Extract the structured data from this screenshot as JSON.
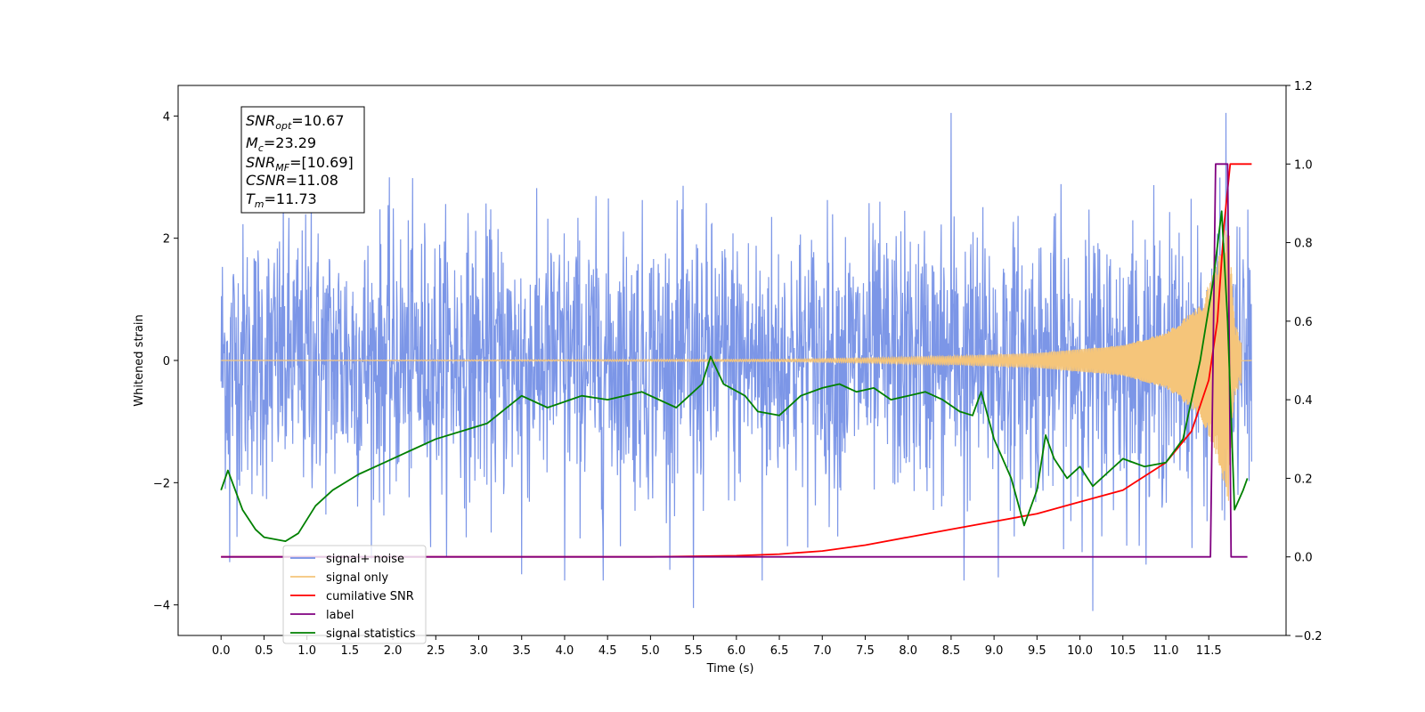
{
  "chart_data": {
    "type": "line",
    "xlabel": "Time (s)",
    "ylabel": "Whitened strain",
    "xlim": [
      -0.5,
      12.4
    ],
    "ylim": [
      -4.5,
      4.5
    ],
    "y2lim": [
      -0.2,
      1.2
    ],
    "xticks": [
      "0.0",
      "0.5",
      "1.0",
      "1.5",
      "2.0",
      "2.5",
      "3.0",
      "3.5",
      "4.0",
      "4.5",
      "5.0",
      "5.5",
      "6.0",
      "6.5",
      "7.0",
      "7.5",
      "8.0",
      "8.5",
      "9.0",
      "9.5",
      "10.0",
      "10.5",
      "11.0",
      "11.5"
    ],
    "yticks": [
      "4",
      "2",
      "0",
      "−2",
      "−4"
    ],
    "y2ticks": [
      "1.2",
      "1.0",
      "0.8",
      "0.6",
      "0.4",
      "0.2",
      "0.0",
      "−0.2"
    ],
    "annotation": {
      "snr_opt": {
        "label": "SNR",
        "sub": "opt",
        "value": "=10.67"
      },
      "mc": {
        "label": "M",
        "sub": "c",
        "value": "=23.29"
      },
      "snr_mf": {
        "label": "SNR",
        "sub": "MF",
        "value": "=[10.69]"
      },
      "csnr": {
        "label": "CSNR",
        "sub": "",
        "value": "=11.08"
      },
      "tm": {
        "label": "T",
        "sub": "m",
        "value": "=11.73"
      }
    },
    "legend": {
      "position": "lower left",
      "entries": [
        {
          "label": "signal+ noise",
          "color": "#7590e6"
        },
        {
          "label": "signal only",
          "color": "#f5c57a"
        },
        {
          "label": "cumilative SNR",
          "color": "#ff0000"
        },
        {
          "label": "label",
          "color": "#800080"
        },
        {
          "label": "signal statistics",
          "color": "#008000"
        }
      ]
    },
    "series": [
      {
        "name": "signal+ noise",
        "axis": "left",
        "color": "#7590e6",
        "description": "whitened noise ~N(0,1.1) spanning 0–12 s, peaks near ±4",
        "peaks": [
          [
            0.05,
            -2.1
          ],
          [
            0.1,
            -3.3
          ],
          [
            1.05,
            2.7
          ],
          [
            3.5,
            -3.5
          ],
          [
            4.0,
            -3.6
          ],
          [
            4.45,
            -3.6
          ],
          [
            5.5,
            -4.05
          ],
          [
            6.3,
            -3.6
          ],
          [
            8.5,
            4.05
          ],
          [
            8.65,
            -3.6
          ],
          [
            9.05,
            -3.55
          ],
          [
            10.15,
            -4.1
          ],
          [
            11.7,
            4.05
          ]
        ]
      },
      {
        "name": "signal only",
        "axis": "left",
        "color": "#f5c57a",
        "description": "chirp growing in amplitude, merger at 11.73 s",
        "envelope": [
          [
            0.0,
            0.0
          ],
          [
            6.5,
            0.02
          ],
          [
            7.5,
            0.04
          ],
          [
            8.5,
            0.07
          ],
          [
            9.5,
            0.12
          ],
          [
            10.5,
            0.25
          ],
          [
            11.0,
            0.45
          ],
          [
            11.4,
            0.9
          ],
          [
            11.6,
            1.6
          ],
          [
            11.73,
            2.3
          ],
          [
            11.8,
            0.6
          ],
          [
            12.0,
            0.0
          ]
        ]
      },
      {
        "name": "cumilative SNR",
        "axis": "right",
        "color": "#ff0000",
        "x": [
          0.0,
          5.0,
          6.0,
          6.5,
          7.0,
          7.5,
          8.0,
          8.5,
          9.0,
          9.5,
          10.0,
          10.5,
          11.0,
          11.3,
          11.5,
          11.6,
          11.68,
          11.75,
          12.0
        ],
        "values": [
          0.0,
          0.0,
          0.003,
          0.007,
          0.015,
          0.03,
          0.05,
          0.07,
          0.09,
          0.11,
          0.14,
          0.17,
          0.24,
          0.32,
          0.45,
          0.6,
          0.85,
          1.0,
          1.0
        ]
      },
      {
        "name": "label",
        "axis": "right",
        "color": "#800080",
        "x": [
          0.0,
          11.52,
          11.58,
          11.72,
          11.76,
          11.95
        ],
        "values": [
          0.0,
          0.0,
          1.0,
          1.0,
          0.0,
          0.0
        ]
      },
      {
        "name": "signal statistics",
        "axis": "right",
        "color": "#008000",
        "x": [
          0.0,
          0.08,
          0.25,
          0.4,
          0.5,
          0.75,
          0.9,
          1.1,
          1.3,
          1.6,
          1.9,
          2.2,
          2.5,
          2.8,
          3.1,
          3.5,
          3.8,
          4.2,
          4.5,
          4.9,
          5.3,
          5.6,
          5.7,
          5.85,
          6.1,
          6.25,
          6.5,
          6.75,
          7.0,
          7.2,
          7.4,
          7.6,
          7.8,
          8.0,
          8.2,
          8.4,
          8.6,
          8.75,
          8.85,
          9.0,
          9.2,
          9.35,
          9.5,
          9.6,
          9.7,
          9.85,
          10.0,
          10.15,
          10.3,
          10.5,
          10.75,
          11.0,
          11.2,
          11.4,
          11.55,
          11.65,
          11.72,
          11.8,
          11.9,
          11.95
        ],
        "values": [
          0.17,
          0.22,
          0.12,
          0.07,
          0.05,
          0.04,
          0.06,
          0.13,
          0.17,
          0.21,
          0.24,
          0.27,
          0.3,
          0.32,
          0.34,
          0.41,
          0.38,
          0.41,
          0.4,
          0.42,
          0.38,
          0.44,
          0.51,
          0.44,
          0.41,
          0.37,
          0.36,
          0.41,
          0.43,
          0.44,
          0.42,
          0.43,
          0.4,
          0.41,
          0.42,
          0.4,
          0.37,
          0.36,
          0.42,
          0.3,
          0.2,
          0.08,
          0.17,
          0.31,
          0.25,
          0.2,
          0.23,
          0.18,
          0.21,
          0.25,
          0.23,
          0.24,
          0.3,
          0.5,
          0.7,
          0.88,
          0.6,
          0.12,
          0.17,
          0.2
        ]
      }
    ]
  }
}
